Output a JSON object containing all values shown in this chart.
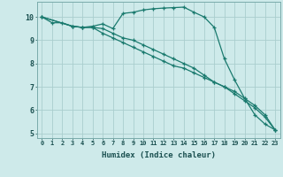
{
  "xlabel": "Humidex (Indice chaleur)",
  "ylabel": "",
  "background_color": "#ceeaea",
  "grid_color": "#aacece",
  "line_color": "#1a7a6e",
  "xlim": [
    -0.5,
    23.5
  ],
  "ylim": [
    4.8,
    10.65
  ],
  "yticks": [
    5,
    6,
    7,
    8,
    9,
    10
  ],
  "series": [
    {
      "x": [
        0,
        1,
        2,
        3,
        4,
        5,
        6,
        7,
        8,
        9,
        10,
        11,
        12,
        13,
        14,
        15,
        16,
        17,
        18,
        19,
        20,
        21,
        22,
        23
      ],
      "y": [
        10.0,
        9.75,
        9.75,
        9.6,
        9.55,
        9.6,
        9.7,
        9.5,
        10.15,
        10.2,
        10.3,
        10.35,
        10.38,
        10.4,
        10.42,
        10.2,
        10.0,
        9.55,
        8.2,
        7.3,
        6.5,
        5.8,
        5.4,
        5.15
      ]
    },
    {
      "x": [
        0,
        3,
        4,
        5,
        6,
        7,
        8,
        9,
        10,
        11,
        12,
        13,
        14,
        15,
        16,
        17,
        18,
        19,
        20,
        21,
        22,
        23
      ],
      "y": [
        10.0,
        9.6,
        9.55,
        9.55,
        9.3,
        9.1,
        8.9,
        8.7,
        8.5,
        8.3,
        8.1,
        7.9,
        7.8,
        7.6,
        7.4,
        7.2,
        7.0,
        6.8,
        6.5,
        6.2,
        5.8,
        5.15
      ]
    },
    {
      "x": [
        0,
        3,
        4,
        5,
        6,
        7,
        8,
        9,
        10,
        11,
        12,
        13,
        14,
        15,
        16,
        17,
        18,
        19,
        20,
        21,
        22,
        23
      ],
      "y": [
        10.0,
        9.6,
        9.55,
        9.55,
        9.5,
        9.3,
        9.1,
        9.0,
        8.8,
        8.6,
        8.4,
        8.2,
        8.0,
        7.8,
        7.5,
        7.2,
        7.0,
        6.7,
        6.4,
        6.1,
        5.7,
        5.15
      ]
    }
  ]
}
